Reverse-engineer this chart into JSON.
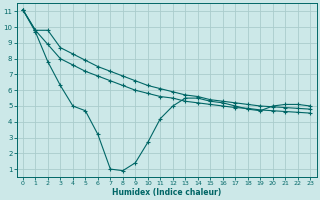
{
  "xlabel": "Humidex (Indice chaleur)",
  "bg_color": "#cce8e8",
  "line_color": "#006666",
  "grid_color": "#aacccc",
  "xlim": [
    -0.5,
    23.5
  ],
  "ylim": [
    0.5,
    11.5
  ],
  "xticks": [
    0,
    1,
    2,
    3,
    4,
    5,
    6,
    7,
    8,
    9,
    10,
    11,
    12,
    13,
    14,
    15,
    16,
    17,
    18,
    19,
    20,
    21,
    22,
    23
  ],
  "yticks": [
    1,
    2,
    3,
    4,
    5,
    6,
    7,
    8,
    9,
    10,
    11
  ],
  "line_smooth_top": {
    "x": [
      0,
      1,
      2,
      3,
      4,
      5,
      6,
      7,
      8,
      9,
      10,
      11,
      12,
      13,
      14,
      15,
      16,
      17,
      18,
      19,
      20,
      21,
      22,
      23
    ],
    "y": [
      11.1,
      9.8,
      9.8,
      8.7,
      8.3,
      7.9,
      7.5,
      7.2,
      6.9,
      6.6,
      6.3,
      6.1,
      5.9,
      5.7,
      5.6,
      5.4,
      5.3,
      5.2,
      5.1,
      5.0,
      4.95,
      4.9,
      4.85,
      4.8
    ]
  },
  "line_smooth_mid": {
    "x": [
      0,
      1,
      2,
      3,
      4,
      5,
      6,
      7,
      8,
      9,
      10,
      11,
      12,
      13,
      14,
      15,
      16,
      17,
      18,
      19,
      20,
      21,
      22,
      23
    ],
    "y": [
      11.1,
      9.8,
      8.9,
      8.0,
      7.6,
      7.2,
      6.9,
      6.6,
      6.3,
      6.0,
      5.8,
      5.6,
      5.5,
      5.3,
      5.2,
      5.1,
      5.0,
      4.9,
      4.85,
      4.75,
      4.7,
      4.65,
      4.6,
      4.55
    ]
  },
  "line_dip": {
    "x": [
      0,
      1,
      2,
      3,
      4,
      5,
      6,
      7,
      8,
      9,
      10,
      11,
      12,
      13,
      14,
      15,
      16,
      17,
      18,
      19,
      20,
      21,
      22,
      23
    ],
    "y": [
      11.1,
      9.7,
      7.8,
      6.3,
      5.0,
      4.7,
      3.2,
      1.0,
      0.9,
      1.4,
      2.7,
      4.2,
      5.0,
      5.5,
      5.5,
      5.3,
      5.2,
      5.0,
      4.8,
      4.7,
      5.0,
      5.1,
      5.1,
      5.0
    ]
  }
}
